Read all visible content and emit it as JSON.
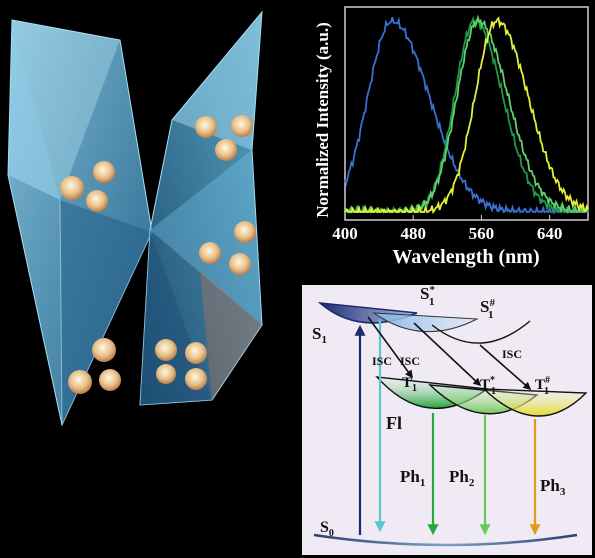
{
  "chart_data": {
    "type": "line",
    "xlabel": "Wavelength (nm)",
    "ylabel": "Normalized Intensity (a.u.)",
    "xlim": [
      400,
      685
    ],
    "ylim": [
      0,
      1
    ],
    "x_ticks": [
      "400",
      "480",
      "560",
      "640"
    ],
    "grid": false,
    "series": [
      {
        "color": "#3b6fd0",
        "peak": 455,
        "width_left": 40,
        "width_right": 62,
        "x": [
          400,
          420,
          440,
          455,
          470,
          490,
          520,
          560,
          600,
          640,
          685
        ],
        "values": [
          0.75,
          0.89,
          0.98,
          1.0,
          0.97,
          0.83,
          0.57,
          0.3,
          0.14,
          0.06,
          0.03
        ]
      },
      {
        "color": "#1e9a4a",
        "peak": 552,
        "width_left": 33,
        "width_right": 47,
        "x": [
          440,
          480,
          510,
          530,
          552,
          575,
          600,
          630,
          660,
          685
        ],
        "values": [
          0.03,
          0.15,
          0.45,
          0.79,
          1.0,
          0.89,
          0.59,
          0.26,
          0.07,
          0.02
        ]
      },
      {
        "color": "#5fd06a",
        "peak": 556,
        "width_left": 35,
        "width_right": 50,
        "x": [
          440,
          480,
          510,
          530,
          556,
          580,
          605,
          635,
          665,
          685
        ],
        "values": [
          0.04,
          0.17,
          0.46,
          0.76,
          1.0,
          0.88,
          0.58,
          0.26,
          0.07,
          0.03
        ]
      },
      {
        "color": "#e4ef38",
        "peak": 578,
        "width_left": 36,
        "width_right": 52,
        "x": [
          450,
          490,
          520,
          550,
          578,
          600,
          625,
          655,
          685
        ],
        "values": [
          0.02,
          0.12,
          0.36,
          0.75,
          1.0,
          0.91,
          0.65,
          0.3,
          0.1
        ]
      }
    ]
  },
  "diagram": {
    "levels": {
      "S1": {
        "main": "S",
        "sub": "1"
      },
      "Sstar1": {
        "main": "S",
        "sup": "*",
        "sub": "1"
      },
      "Shash1": {
        "main": "S",
        "sup": "#",
        "sub": "1"
      },
      "T1": {
        "main": "T",
        "sub": "1"
      },
      "Tstar1": {
        "main": "T",
        "sup": "*",
        "sub": "1"
      },
      "Thash1": {
        "main": "T",
        "sup": "#",
        "sub": "1"
      },
      "S0": {
        "main": "S",
        "sub": "0"
      }
    },
    "isc_labels": [
      "ISC",
      "ISC",
      "ISC"
    ],
    "fl_label": "Fl",
    "ph": [
      {
        "main": "Ph",
        "sub": "1",
        "color": "#22aa3c"
      },
      {
        "main": "Ph",
        "sub": "2",
        "color": "#66c958"
      },
      {
        "main": "Ph",
        "sub": "3",
        "color": "#e39a1c"
      }
    ],
    "fl_color": "#5cc6cf",
    "absorb_color": "#1b2a6e"
  }
}
